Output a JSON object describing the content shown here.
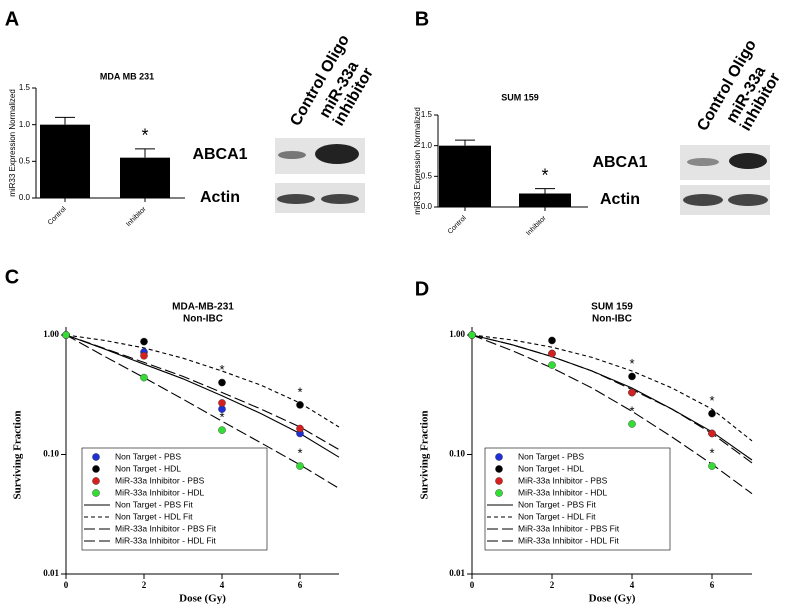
{
  "chart_data": [
    {
      "type": "bar",
      "panel": "A",
      "title": "MDA MB 231",
      "ylabel": "miR33 Expression Normalized",
      "categories": [
        "Control",
        "Inhibitor"
      ],
      "values": [
        1.0,
        0.55
      ],
      "errors": [
        0.1,
        0.12
      ],
      "color": "#000000",
      "ylim": [
        0,
        1.5
      ],
      "yticks": [
        {
          "value": 0,
          "label": "0.0"
        },
        {
          "value": 0.5,
          "label": "0.5"
        },
        {
          "value": 1,
          "label": "1.0"
        },
        {
          "value": 1.5,
          "label": "1.5"
        }
      ],
      "annotation": "*",
      "blot": {
        "columns": [
          [
            "Control Oligo"
          ],
          [
            "miR-33a",
            "inhibitor"
          ]
        ],
        "rows": [
          "ABCA1",
          "Actin"
        ]
      }
    },
    {
      "type": "bar",
      "panel": "B",
      "title": "SUM 159",
      "ylabel": "miR33 Expression Normalized",
      "categories": [
        "Control",
        "Inhibitor"
      ],
      "values": [
        1.0,
        0.22
      ],
      "errors": [
        0.09,
        0.08
      ],
      "color": "#000000",
      "ylim": [
        0,
        1.5
      ],
      "yticks": [
        {
          "value": 0,
          "label": "0.0"
        },
        {
          "value": 0.5,
          "label": "0.5"
        },
        {
          "value": 1,
          "label": "1.0"
        },
        {
          "value": 1.5,
          "label": "1.5"
        }
      ],
      "annotation": "*",
      "blot": {
        "columns": [
          [
            "Control Oligo"
          ],
          [
            "miR-33a",
            "inhibitor"
          ]
        ],
        "rows": [
          "ABCA1",
          "Actin"
        ]
      }
    },
    {
      "type": "scatter",
      "panel": "C",
      "title": "MDA-MB-231",
      "subtitle": "Non-IBC",
      "xlabel": "Dose (Gy)",
      "ylabel": "Surviving Fraction",
      "log_y": true,
      "xlim": [
        0,
        7
      ],
      "xticks": [
        0,
        2,
        4,
        6
      ],
      "ylim": [
        0.01,
        1
      ],
      "yticks": [
        0.01,
        {
          "value": 0.1,
          "label": "0.10"
        },
        {
          "value": 1,
          "label": "1.00"
        }
      ],
      "annotation": "*",
      "series": [
        {
          "name": "Non Target - PBS",
          "mode": "markers",
          "color": "#1f2fd6",
          "x": [
            0,
            2,
            4,
            6
          ],
          "values": [
            1.0,
            0.72,
            0.24,
            0.15
          ]
        },
        {
          "name": "Non Target - HDL",
          "mode": "markers",
          "color": "#000000",
          "x": [
            0,
            2,
            4,
            6
          ],
          "values": [
            1.0,
            0.88,
            0.4,
            0.26
          ]
        },
        {
          "name": "MiR-33a Inhibitor - PBS",
          "mode": "markers",
          "color": "#d62020",
          "x": [
            0,
            2,
            4,
            6
          ],
          "values": [
            1.0,
            0.67,
            0.27,
            0.165
          ]
        },
        {
          "name": "MiR-33a Inhibitor - HDL",
          "mode": "markers",
          "color": "#33dd33",
          "x": [
            0,
            2,
            4,
            6
          ],
          "values": [
            1.0,
            0.44,
            0.16,
            0.08
          ]
        },
        {
          "name": "Non Target - PBS Fit",
          "mode": "lines",
          "dash": "solid",
          "color": "#000000",
          "x": [
            0,
            1,
            2,
            3,
            4,
            5,
            6,
            7
          ],
          "values": [
            1,
            0.76,
            0.57,
            0.43,
            0.31,
            0.22,
            0.15,
            0.095
          ]
        },
        {
          "name": "Non Target - HDL Fit",
          "mode": "lines",
          "dash": "short",
          "color": "#000000",
          "x": [
            0,
            1,
            2,
            3,
            4,
            5,
            6,
            7
          ],
          "values": [
            1,
            0.9,
            0.78,
            0.64,
            0.5,
            0.38,
            0.27,
            0.17
          ]
        },
        {
          "name": "MiR-33a Inhibitor - PBS Fit",
          "mode": "lines",
          "dash": "long",
          "color": "#000000",
          "x": [
            0,
            1,
            2,
            3,
            4,
            5,
            6,
            7
          ],
          "values": [
            1,
            0.77,
            0.59,
            0.45,
            0.33,
            0.24,
            0.17,
            0.11
          ]
        },
        {
          "name": "MiR-33a Inhibitor - HDL Fit",
          "mode": "lines",
          "dash": "long",
          "color": "#000000",
          "x": [
            0,
            1,
            2,
            3,
            4,
            5,
            6,
            7
          ],
          "values": [
            1,
            0.66,
            0.44,
            0.29,
            0.19,
            0.125,
            0.082,
            0.052
          ]
        }
      ]
    },
    {
      "type": "scatter",
      "panel": "D",
      "title": "SUM 159",
      "subtitle": "Non-IBC",
      "xlabel": "Dose (Gy)",
      "ylabel": "Surviving Fraction",
      "log_y": true,
      "xlim": [
        0,
        7
      ],
      "xticks": [
        0,
        2,
        4,
        6
      ],
      "ylim": [
        0.01,
        1
      ],
      "yticks": [
        0.01,
        {
          "value": 0.1,
          "label": "0.10"
        },
        {
          "value": 1,
          "label": "1.00"
        }
      ],
      "annotation": "*",
      "series": [
        {
          "name": "Non Target - PBS",
          "mode": "markers",
          "color": "#1f2fd6",
          "x": [
            0,
            2,
            4,
            6
          ],
          "values": [
            1.0,
            0.7,
            0.33,
            0.15
          ]
        },
        {
          "name": "Non Target - HDL",
          "mode": "markers",
          "color": "#000000",
          "x": [
            0,
            2,
            4,
            6
          ],
          "values": [
            1.0,
            0.9,
            0.45,
            0.22
          ]
        },
        {
          "name": "MiR-33a Inhibitor - PBS",
          "mode": "markers",
          "color": "#d62020",
          "x": [
            0,
            2,
            4,
            6
          ],
          "values": [
            1.0,
            0.7,
            0.33,
            0.15
          ]
        },
        {
          "name": "MiR-33a Inhibitor - HDL",
          "mode": "markers",
          "color": "#33dd33",
          "x": [
            0,
            2,
            4,
            6
          ],
          "values": [
            1.0,
            0.56,
            0.18,
            0.08
          ]
        },
        {
          "name": "Non Target - PBS Fit",
          "mode": "lines",
          "dash": "solid",
          "color": "#000000",
          "x": [
            0,
            1,
            2,
            3,
            4,
            5,
            6,
            7
          ],
          "values": [
            1,
            0.83,
            0.66,
            0.5,
            0.36,
            0.24,
            0.155,
            0.09
          ]
        },
        {
          "name": "Non Target - HDL Fit",
          "mode": "lines",
          "dash": "short",
          "color": "#000000",
          "x": [
            0,
            1,
            2,
            3,
            4,
            5,
            6,
            7
          ],
          "values": [
            1,
            0.91,
            0.79,
            0.65,
            0.5,
            0.36,
            0.24,
            0.13
          ]
        },
        {
          "name": "MiR-33a Inhibitor - PBS Fit",
          "mode": "lines",
          "dash": "long",
          "color": "#000000",
          "x": [
            0,
            1,
            2,
            3,
            4,
            5,
            6,
            7
          ],
          "values": [
            1,
            0.83,
            0.66,
            0.5,
            0.35,
            0.24,
            0.15,
            0.085
          ]
        },
        {
          "name": "MiR-33a Inhibitor - HDL Fit",
          "mode": "lines",
          "dash": "long",
          "color": "#000000",
          "x": [
            0,
            1,
            2,
            3,
            4,
            5,
            6,
            7
          ],
          "values": [
            1,
            0.74,
            0.53,
            0.36,
            0.23,
            0.14,
            0.083,
            0.047
          ]
        }
      ]
    }
  ]
}
